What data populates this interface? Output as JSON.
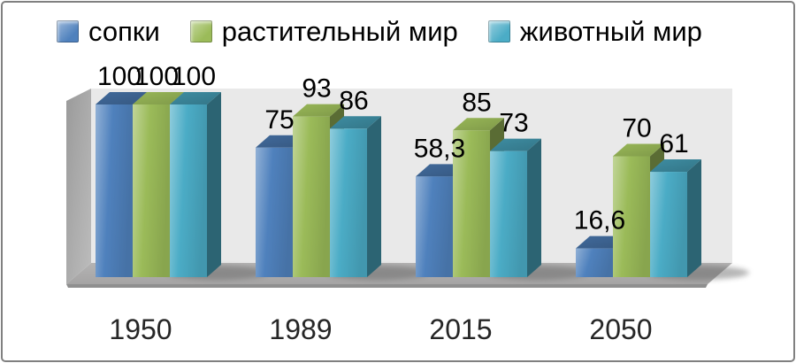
{
  "chart_data": {
    "type": "bar",
    "style": "3d-clustered",
    "title": "",
    "xlabel": "",
    "ylabel": "",
    "ylim": [
      0,
      100
    ],
    "grid": false,
    "legend_position": "top",
    "value_label_decimal_separator": ",",
    "categories": [
      "1950",
      "1989",
      "2015",
      "2050"
    ],
    "series": [
      {
        "name": "сопки",
        "color": "#4F81BD",
        "values": [
          100,
          75,
          58.3,
          16.6
        ],
        "labels": [
          "100",
          "75",
          "58,3",
          "16,6"
        ]
      },
      {
        "name": "растительный мир",
        "color": "#9BBB59",
        "values": [
          100,
          93,
          85,
          70
        ],
        "labels": [
          "100",
          "93",
          "85",
          "70"
        ]
      },
      {
        "name": "животный мир",
        "color": "#4BACC6",
        "values": [
          100,
          86,
          73,
          61
        ],
        "labels": [
          "100",
          "86",
          "73",
          "61"
        ]
      }
    ]
  },
  "palette": {
    "back_wall": "#E9E9E9",
    "side_wall_top": "#9A9A9A",
    "side_wall_bottom": "#BDBDBD",
    "floor_back": "#B4B3B3",
    "floor_front": "#A5A4A4",
    "floor_edge": "#8F8F8F",
    "panel_border": "#808080",
    "value_label_color": "#000000",
    "axis_label_color": "#262626"
  }
}
